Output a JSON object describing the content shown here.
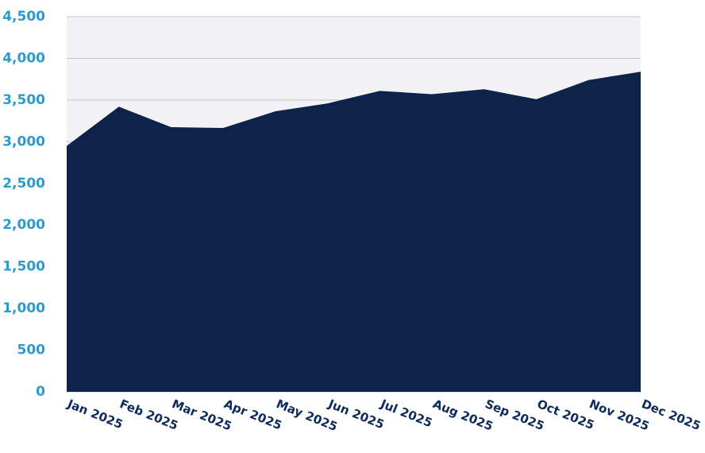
{
  "chart_data": {
    "type": "area",
    "categories": [
      "Jan 2025",
      "Feb 2025",
      "Mar 2025",
      "Apr 2025",
      "May 2025",
      "Jun 2025",
      "Jul 2025",
      "Aug 2025",
      "Sep 2025",
      "Oct 2025",
      "Nov 2025",
      "Dec 2025"
    ],
    "values": [
      2950,
      3420,
      3175,
      3165,
      3365,
      3460,
      3610,
      3570,
      3630,
      3510,
      3740,
      3840
    ],
    "color": "#0e2349",
    "ylim": [
      0,
      4500
    ],
    "yticks": [
      0,
      500,
      {
        "value": 1000,
        "label": "1,000"
      },
      {
        "value": 1500,
        "label": "1,500"
      },
      {
        "value": 2000,
        "label": "2,000"
      },
      {
        "value": 2500,
        "label": "2,500"
      },
      {
        "value": 3000,
        "label": "3,000"
      },
      {
        "value": 3500,
        "label": "3,500"
      },
      {
        "value": 4000,
        "label": "4,000"
      },
      {
        "value": 4500,
        "label": "4,500"
      }
    ],
    "grid": true
  }
}
